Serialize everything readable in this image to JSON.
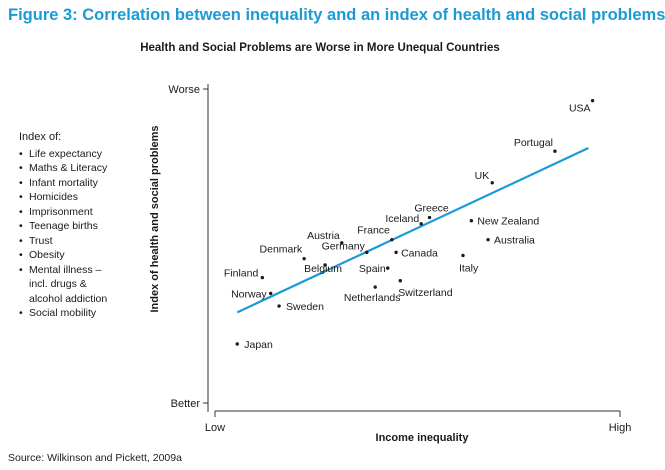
{
  "figure_title": "Figure 3: Correlation between inequality and an index of health and social problems",
  "source": "Source: Wilkinson and Pickett, 2009a",
  "legend": {
    "heading": "Index of:",
    "items": [
      "Life expectancy",
      "Maths & Literacy",
      "Infant mortality",
      "Homicides",
      "Imprisonment",
      "Teenage births",
      "Trust",
      "Obesity",
      [
        "Mental illness –",
        "incl. drugs &",
        "alcohol addiction"
      ],
      "Social mobility"
    ]
  },
  "chart_data": {
    "type": "scatter",
    "title": "Health and Social Problems are Worse in More Unequal Countries",
    "xlabel": "Income inequality",
    "ylabel": "Index of health and social problems",
    "x_tick_labels": [
      "Low",
      "High"
    ],
    "y_tick_labels": [
      "Better",
      "Worse"
    ],
    "xlim": [
      0,
      100
    ],
    "ylim": [
      0,
      100
    ],
    "grid": false,
    "trend_line": {
      "x": [
        7,
        91
      ],
      "y": [
        29,
        81
      ],
      "color": "#1a9ad6"
    },
    "colors": {
      "trend": "#1a9ad6",
      "title": "#1a9ad6",
      "points": "#1a1a1a"
    },
    "points": [
      {
        "label": "USA",
        "x": 92,
        "y": 96
      },
      {
        "label": "Portugal",
        "x": 83,
        "y": 80
      },
      {
        "label": "UK",
        "x": 68,
        "y": 70
      },
      {
        "label": "Greece",
        "x": 53,
        "y": 59
      },
      {
        "label": "Iceland",
        "x": 51,
        "y": 57
      },
      {
        "label": "New Zealand",
        "x": 63,
        "y": 58
      },
      {
        "label": "Austria",
        "x": 32,
        "y": 51
      },
      {
        "label": "France",
        "x": 44,
        "y": 52
      },
      {
        "label": "Australia",
        "x": 67,
        "y": 52
      },
      {
        "label": "Denmark",
        "x": 23,
        "y": 46
      },
      {
        "label": "Germany",
        "x": 38,
        "y": 48
      },
      {
        "label": "Canada",
        "x": 45,
        "y": 48
      },
      {
        "label": "Italy",
        "x": 61,
        "y": 47
      },
      {
        "label": "Belgium",
        "x": 28,
        "y": 44
      },
      {
        "label": "Spain",
        "x": 43,
        "y": 43
      },
      {
        "label": "Finland",
        "x": 13,
        "y": 40
      },
      {
        "label": "Switzerland",
        "x": 46,
        "y": 39
      },
      {
        "label": "Norway",
        "x": 15,
        "y": 35
      },
      {
        "label": "Netherlands",
        "x": 40,
        "y": 37
      },
      {
        "label": "Sweden",
        "x": 17,
        "y": 31
      },
      {
        "label": "Japan",
        "x": 7,
        "y": 19
      }
    ]
  }
}
